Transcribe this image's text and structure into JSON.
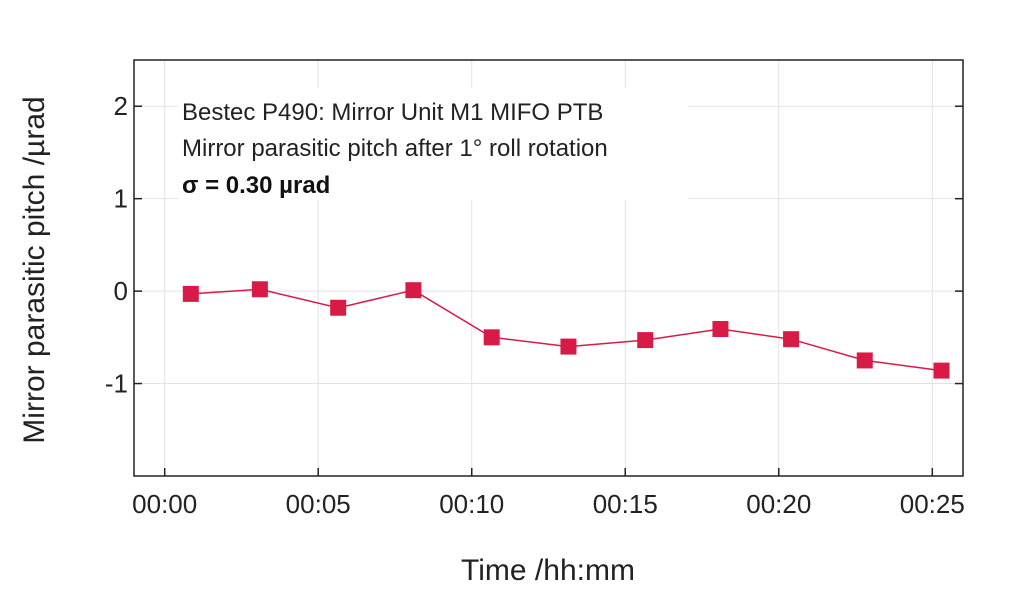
{
  "chart_data": {
    "type": "line",
    "title": "",
    "xlabel": "Time /hh:mm",
    "ylabel": "Mirror parasitic pitch /µrad",
    "x_tick_labels": [
      "00:00",
      "00:05",
      "00:10",
      "00:15",
      "00:20",
      "00:25"
    ],
    "x_ticks_minutes": [
      0,
      5,
      10,
      15,
      20,
      25
    ],
    "y_tick_labels": [
      "-1",
      "0",
      "1",
      "2"
    ],
    "y_ticks": [
      -1,
      0,
      1,
      2
    ],
    "xlim": [
      "-00:01",
      "00:26"
    ],
    "ylim": [
      -2,
      2.5
    ],
    "grid": true,
    "annotations": {
      "line1": "Bestec P490: Mirror Unit M1 MIFO PTB",
      "line2": "Mirror parasitic pitch after 1° roll rotation",
      "line3": "σ = 0.30 µrad"
    },
    "series": [
      {
        "color": "#d81b46",
        "marker": "square",
        "x": [
          "00:01",
          "00:03",
          "00:06",
          "00:08",
          "00:11",
          "00:13",
          "00:16",
          "00:18",
          "00:20",
          "00:23",
          "00:25"
        ],
        "x_minutes": [
          0.85,
          3.1,
          5.65,
          8.1,
          10.65,
          13.15,
          15.65,
          18.1,
          20.4,
          22.8,
          25.3
        ],
        "values": [
          -0.03,
          0.02,
          -0.18,
          0.01,
          -0.5,
          -0.6,
          -0.53,
          -0.41,
          -0.52,
          -0.75,
          -0.86
        ]
      }
    ]
  }
}
